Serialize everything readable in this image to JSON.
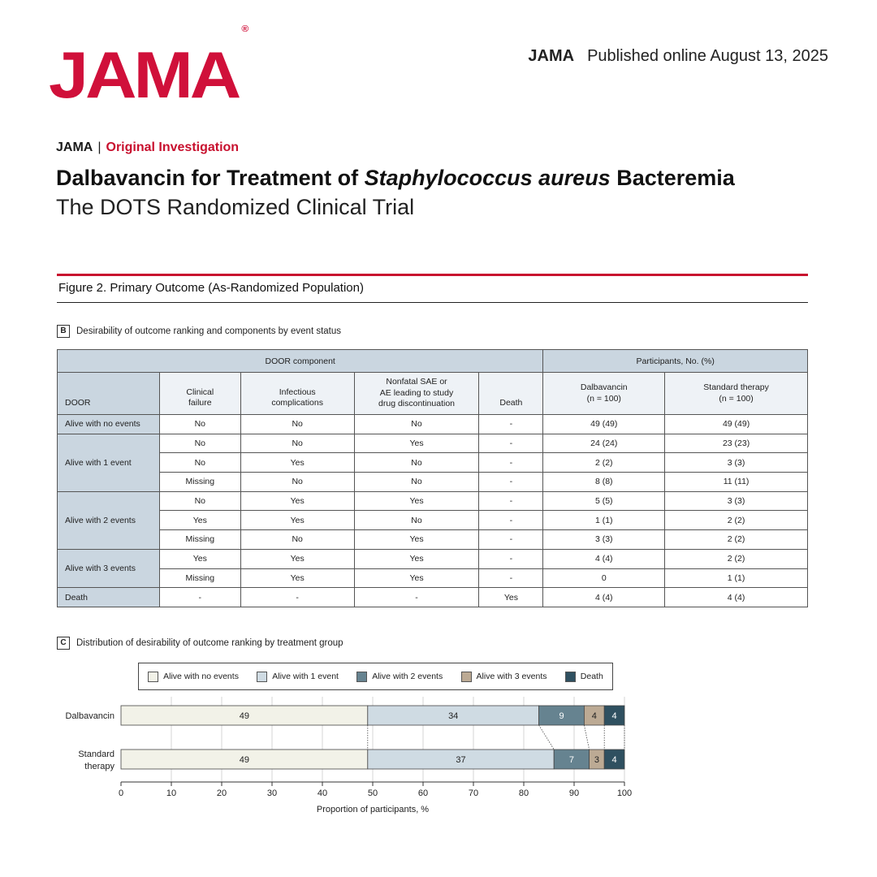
{
  "header": {
    "logo": "JAMA",
    "logo_mark": "®",
    "journal": "JAMA",
    "published": "Published online August  13, 2025"
  },
  "article": {
    "journal": "JAMA",
    "separator": "|",
    "type": "Original Investigation",
    "title_before": "Dalbavancin for Treatment of ",
    "title_italic": "Staphylococcus aureus",
    "title_after": " Bacteremia",
    "subtitle": "The DOTS Randomized Clinical Trial"
  },
  "figure": {
    "title": "Figure 2. Primary Outcome (As-Randomized Population)"
  },
  "colors": {
    "accent_red": "#c8102e",
    "header_fill": "#cad6e0",
    "no_events": "#f2f2e8",
    "one_event": "#cfdbe3",
    "two_events": "#668390",
    "three_events": "#bcaa94",
    "death": "#2f5060"
  },
  "panel_b": {
    "letter": "B",
    "caption": "Desirability of outcome ranking and components by event status",
    "group_headers": {
      "component": "DOOR component",
      "participants": "Participants, No. (%)"
    },
    "columns": {
      "door": "DOOR",
      "clinical_failure": "Clinical\nfailure",
      "infectious": "Infectious\ncomplications",
      "sae": "Nonfatal SAE or\nAE leading to study\ndrug discontinuation",
      "death": "Death",
      "dalba": "Dalbavancin\n(n = 100)",
      "standard": "Standard therapy\n(n = 100)"
    },
    "groups": [
      {
        "label": "Alive with no events",
        "rows": [
          [
            "No",
            "No",
            "No",
            "-",
            "49 (49)",
            "49 (49)"
          ]
        ]
      },
      {
        "label": "Alive with 1 event",
        "rows": [
          [
            "No",
            "No",
            "Yes",
            "-",
            "24 (24)",
            "23 (23)"
          ],
          [
            "No",
            "Yes",
            "No",
            "-",
            "2 (2)",
            "3 (3)"
          ],
          [
            "Missing",
            "No",
            "No",
            "-",
            "8 (8)",
            "11 (11)"
          ]
        ]
      },
      {
        "label": "Alive with 2 events",
        "rows": [
          [
            "No",
            "Yes",
            "Yes",
            "-",
            "5 (5)",
            "3 (3)"
          ],
          [
            "Yes",
            "Yes",
            "No",
            "-",
            "1 (1)",
            "2 (2)"
          ],
          [
            "Missing",
            "No",
            "Yes",
            "-",
            "3 (3)",
            "2 (2)"
          ]
        ]
      },
      {
        "label": "Alive with 3 events",
        "rows": [
          [
            "Yes",
            "Yes",
            "Yes",
            "-",
            "4 (4)",
            "2 (2)"
          ],
          [
            "Missing",
            "Yes",
            "Yes",
            "-",
            "0",
            "1 (1)"
          ]
        ]
      },
      {
        "label": "Death",
        "rows": [
          [
            "-",
            "-",
            "-",
            "Yes",
            "4 (4)",
            "4 (4)"
          ]
        ]
      }
    ]
  },
  "panel_c": {
    "letter": "C",
    "caption": "Distribution of desirability of outcome ranking by treatment group"
  },
  "chart_data": {
    "type": "bar",
    "orientation": "horizontal",
    "stacked": true,
    "categories": [
      "Dalbavancin",
      "Standard therapy"
    ],
    "series": [
      {
        "name": "Alive with no events",
        "values": [
          49,
          49
        ]
      },
      {
        "name": "Alive with 1 event",
        "values": [
          34,
          37
        ]
      },
      {
        "name": "Alive with 2 events",
        "values": [
          9,
          7
        ]
      },
      {
        "name": "Alive with 3 events",
        "values": [
          4,
          3
        ]
      },
      {
        "name": "Death",
        "values": [
          4,
          4
        ]
      }
    ],
    "xlabel": "Proportion of participants, %",
    "xlim": [
      0,
      100
    ],
    "xticks": [
      0,
      10,
      20,
      30,
      40,
      50,
      60,
      70,
      80,
      90,
      100
    ],
    "grid": "vertical",
    "legend": "top"
  }
}
